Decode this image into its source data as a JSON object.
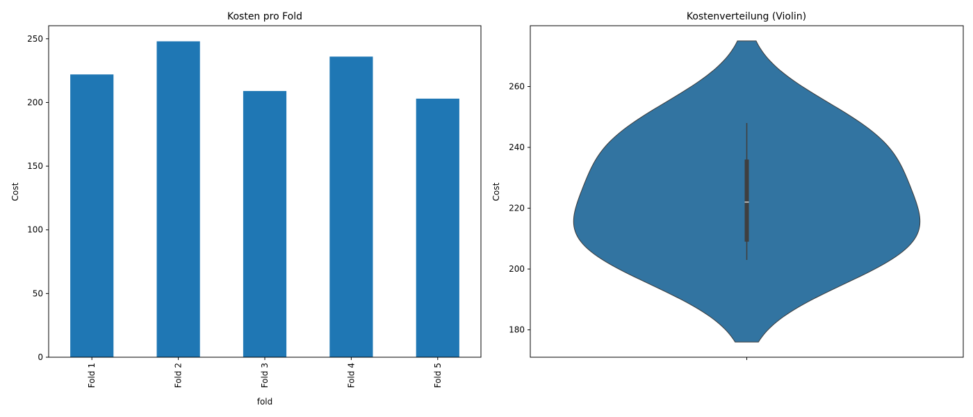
{
  "chart_data": [
    {
      "type": "bar",
      "title": "Kosten pro Fold",
      "xlabel": "fold",
      "ylabel": "Cost",
      "categories": [
        "Fold 1",
        "Fold 2",
        "Fold 3",
        "Fold 4",
        "Fold 5"
      ],
      "values": [
        222,
        248,
        209,
        236,
        203
      ],
      "ylim": [
        0,
        260.25
      ],
      "yticks": [
        0,
        50,
        100,
        150,
        200,
        250
      ],
      "grid": false,
      "colors": {
        "bar": "#1f77b4"
      }
    },
    {
      "type": "violin",
      "title": "Kostenverteilung (Violin)",
      "xlabel": "",
      "ylabel": "Cost",
      "values": [
        222,
        248,
        209,
        236,
        203
      ],
      "summary": {
        "min": 203,
        "q1": 209,
        "median": 222,
        "q3": 236,
        "max": 248
      },
      "density_range": [
        176,
        275
      ],
      "ylim": [
        171,
        280
      ],
      "yticks": [
        180,
        200,
        220,
        240,
        260
      ],
      "grid": false,
      "colors": {
        "violin": "#3274a1",
        "edge": "#3a3a3a",
        "box": "#3f3f3f",
        "median": "#ffffff"
      }
    }
  ]
}
